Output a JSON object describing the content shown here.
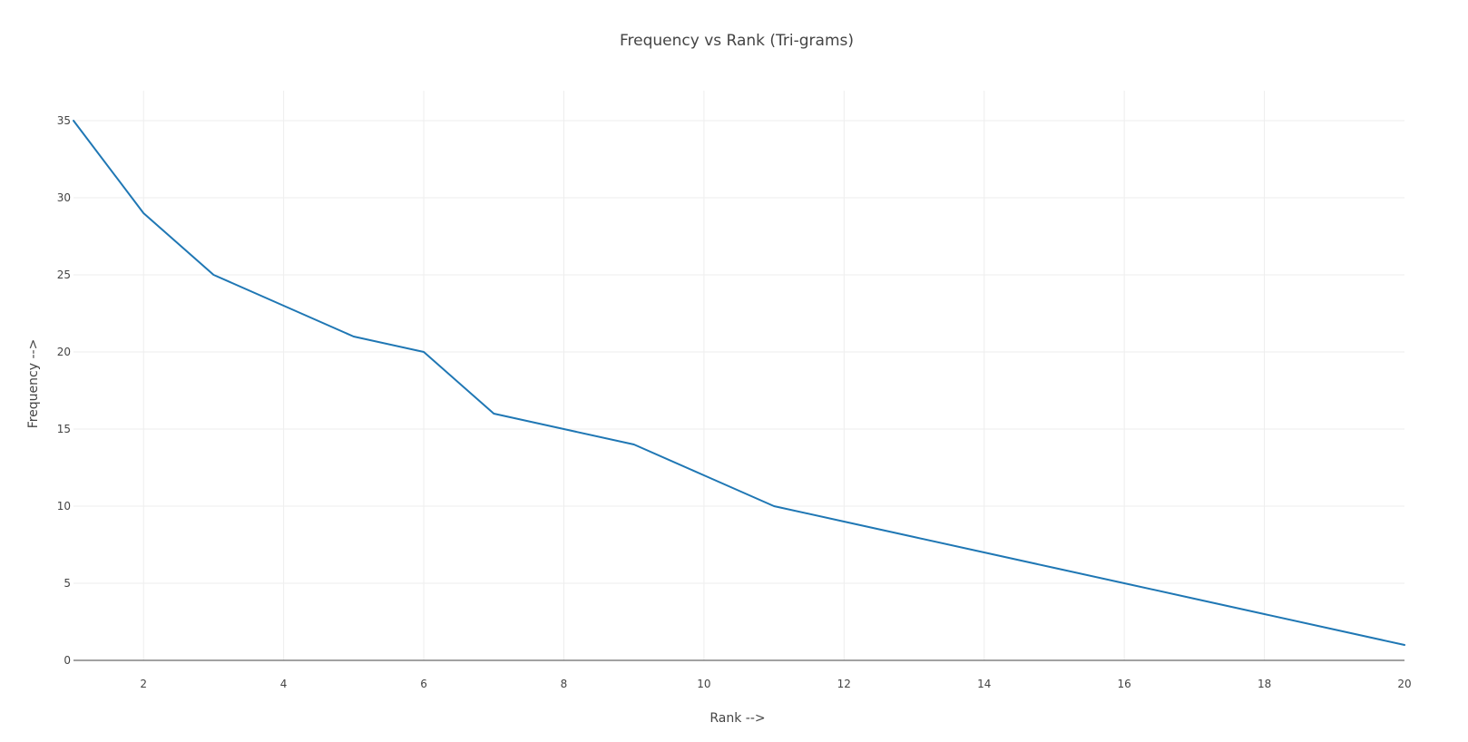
{
  "chart_data": {
    "type": "line",
    "title": "Frequency vs Rank (Tri-grams)",
    "xlabel": "Rank -->",
    "ylabel": "Frequency -->",
    "xlim": [
      1,
      20
    ],
    "ylim": [
      0,
      37
    ],
    "x_ticks": [
      2,
      4,
      6,
      8,
      10,
      12,
      14,
      16,
      18,
      20
    ],
    "y_ticks": [
      0,
      5,
      10,
      15,
      20,
      25,
      30,
      35
    ],
    "grid": true,
    "series": [
      {
        "x": [
          1,
          2,
          3,
          4,
          5,
          6,
          7,
          8,
          9,
          10,
          11,
          12,
          13,
          14,
          15,
          16,
          17,
          18,
          19,
          20
        ],
        "y": [
          35,
          29,
          25,
          23,
          21,
          20,
          16,
          15,
          14,
          12,
          10,
          9,
          8,
          7,
          6,
          5,
          4,
          3,
          2,
          1
        ],
        "color": "#1f77b4"
      }
    ]
  }
}
